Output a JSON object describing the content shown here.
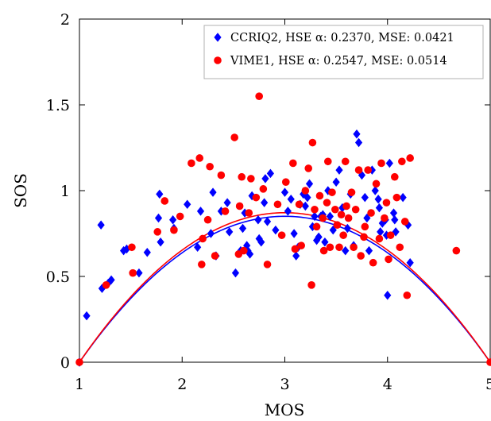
{
  "chart_data": {
    "type": "scatter",
    "title": "",
    "xlabel": "MOS",
    "ylabel": "SOS",
    "xlim": [
      1,
      5
    ],
    "ylim": [
      0,
      2
    ],
    "x_ticks": [
      1,
      2,
      3,
      4,
      5
    ],
    "x_tick_labels": [
      "1",
      "2",
      "3",
      "4",
      "5"
    ],
    "y_ticks": [
      0,
      0.5,
      1,
      1.5,
      2
    ],
    "y_tick_labels": [
      "0",
      "0.5",
      "1",
      "1.5",
      "2"
    ],
    "grid": false,
    "legend_position": "top-right",
    "series": [
      {
        "name": "CCRIQ2, HSE α: 0.2370, MSE: 0.0421",
        "marker": "diamond",
        "color": "#0000ff",
        "fit_alpha": 0.237,
        "x": [
          1.0,
          1.07,
          1.21,
          1.22,
          1.28,
          1.31,
          1.43,
          1.46,
          1.58,
          1.66,
          1.77,
          1.78,
          1.79,
          1.91,
          1.92,
          2.05,
          2.15,
          2.18,
          2.28,
          2.3,
          2.33,
          2.38,
          2.44,
          2.46,
          2.52,
          2.57,
          2.59,
          2.61,
          2.63,
          2.64,
          2.66,
          2.68,
          2.74,
          2.75,
          2.77,
          2.8,
          2.81,
          2.83,
          2.86,
          2.91,
          3.0,
          3.03,
          3.06,
          3.09,
          3.11,
          3.13,
          3.15,
          3.18,
          3.2,
          3.22,
          3.24,
          3.27,
          3.29,
          3.31,
          3.33,
          3.35,
          3.37,
          3.39,
          3.42,
          3.44,
          3.47,
          3.5,
          3.53,
          3.56,
          3.59,
          3.61,
          3.64,
          3.67,
          3.7,
          3.72,
          3.75,
          3.78,
          3.8,
          3.82,
          3.85,
          3.88,
          3.91,
          3.92,
          3.93,
          3.95,
          3.98,
          3.99,
          4.0,
          4.02,
          4.06,
          4.07,
          4.08,
          4.15,
          4.2,
          4.22
        ],
        "y": [
          0.0,
          0.27,
          0.8,
          0.43,
          0.46,
          0.48,
          0.65,
          0.66,
          0.52,
          0.64,
          0.84,
          0.98,
          0.7,
          0.83,
          0.78,
          0.92,
          0.67,
          0.88,
          0.75,
          0.99,
          0.62,
          0.88,
          0.93,
          0.76,
          0.52,
          0.65,
          0.78,
          0.87,
          0.68,
          0.65,
          0.63,
          0.97,
          0.83,
          0.72,
          0.7,
          0.93,
          1.07,
          0.82,
          1.1,
          0.77,
          0.99,
          0.88,
          0.95,
          0.75,
          0.62,
          0.67,
          0.92,
          0.98,
          0.91,
          0.96,
          1.04,
          0.79,
          0.85,
          0.71,
          0.73,
          0.85,
          0.86,
          0.7,
          1.0,
          0.85,
          0.77,
          1.05,
          1.12,
          0.9,
          0.65,
          0.78,
          0.98,
          0.68,
          1.33,
          1.28,
          1.09,
          0.96,
          0.84,
          0.65,
          1.12,
          1.0,
          0.95,
          0.9,
          0.76,
          0.81,
          0.83,
          0.74,
          0.39,
          1.16,
          0.87,
          0.83,
          0.76,
          0.96,
          0.8,
          0.58
        ]
      },
      {
        "name": "VIME1, HSE α: 0.2547, MSE: 0.0514",
        "marker": "circle",
        "color": "#ff0000",
        "fit_alpha": 0.2547,
        "x": [
          1.0,
          1.26,
          1.51,
          1.52,
          1.76,
          1.83,
          1.92,
          1.98,
          2.09,
          2.17,
          2.19,
          2.2,
          2.25,
          2.27,
          2.32,
          2.38,
          2.42,
          2.51,
          2.55,
          2.56,
          2.58,
          2.6,
          2.65,
          2.67,
          2.72,
          2.75,
          2.79,
          2.83,
          2.93,
          2.97,
          3.01,
          3.08,
          3.1,
          3.14,
          3.16,
          3.2,
          3.23,
          3.26,
          3.27,
          3.29,
          3.31,
          3.34,
          3.37,
          3.38,
          3.41,
          3.42,
          3.44,
          3.46,
          3.49,
          3.51,
          3.53,
          3.55,
          3.57,
          3.59,
          3.6,
          3.62,
          3.65,
          3.67,
          3.69,
          3.72,
          3.74,
          3.77,
          3.78,
          3.81,
          3.84,
          3.86,
          3.89,
          3.92,
          3.94,
          3.97,
          3.99,
          4.01,
          4.03,
          4.07,
          4.09,
          4.12,
          4.14,
          4.17,
          4.19,
          4.22,
          4.67,
          5.0
        ],
        "y": [
          0.0,
          0.45,
          0.67,
          0.52,
          0.76,
          0.94,
          0.77,
          0.85,
          1.16,
          1.19,
          0.57,
          0.72,
          0.83,
          1.14,
          0.62,
          1.09,
          0.88,
          1.31,
          0.63,
          0.91,
          1.08,
          0.65,
          0.87,
          1.07,
          0.96,
          1.55,
          1.01,
          0.57,
          0.92,
          0.74,
          1.05,
          1.16,
          0.66,
          0.92,
          0.68,
          1.0,
          1.13,
          0.45,
          1.28,
          0.89,
          0.79,
          0.97,
          0.84,
          0.65,
          0.93,
          1.17,
          0.67,
          0.99,
          0.89,
          0.8,
          0.67,
          0.86,
          0.74,
          1.17,
          0.91,
          0.84,
          0.99,
          0.67,
          0.89,
          1.12,
          0.62,
          0.73,
          0.79,
          1.12,
          0.87,
          0.58,
          1.04,
          0.72,
          1.16,
          0.84,
          0.93,
          0.6,
          0.74,
          1.08,
          0.96,
          0.67,
          1.17,
          0.82,
          0.39,
          1.19,
          0.65,
          0.0
        ]
      }
    ]
  }
}
